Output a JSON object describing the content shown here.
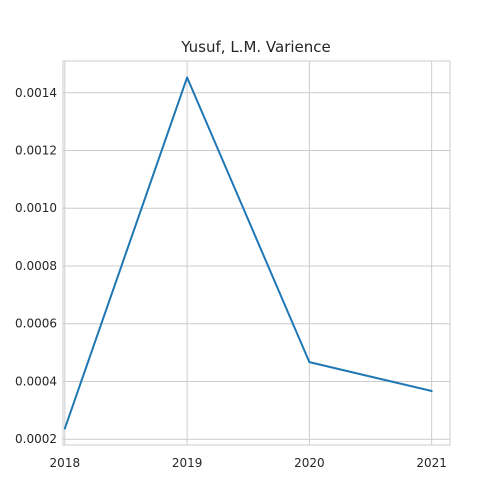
{
  "chart_data": {
    "type": "line",
    "title": "Yusuf, L.M. Varience",
    "xlabel": "",
    "ylabel": "",
    "x": [
      2018,
      2019,
      2020,
      2021
    ],
    "x_tick_labels": [
      "2018",
      "2019",
      "2020",
      "2021"
    ],
    "y_ticks": [
      0.0002,
      0.0004,
      0.0006,
      0.0008,
      0.001,
      0.0012,
      0.0014
    ],
    "y_tick_labels": [
      "0.0002",
      "0.0004",
      "0.0006",
      "0.0008",
      "0.0010",
      "0.0012",
      "0.0014"
    ],
    "xlim": [
      2017.985,
      2021.15
    ],
    "ylim": [
      0.00018,
      0.00151
    ],
    "grid": true,
    "series": [
      {
        "values": [
          0.000237,
          0.001453,
          0.000467,
          0.000367
        ],
        "color": "#1f77b4"
      }
    ]
  }
}
